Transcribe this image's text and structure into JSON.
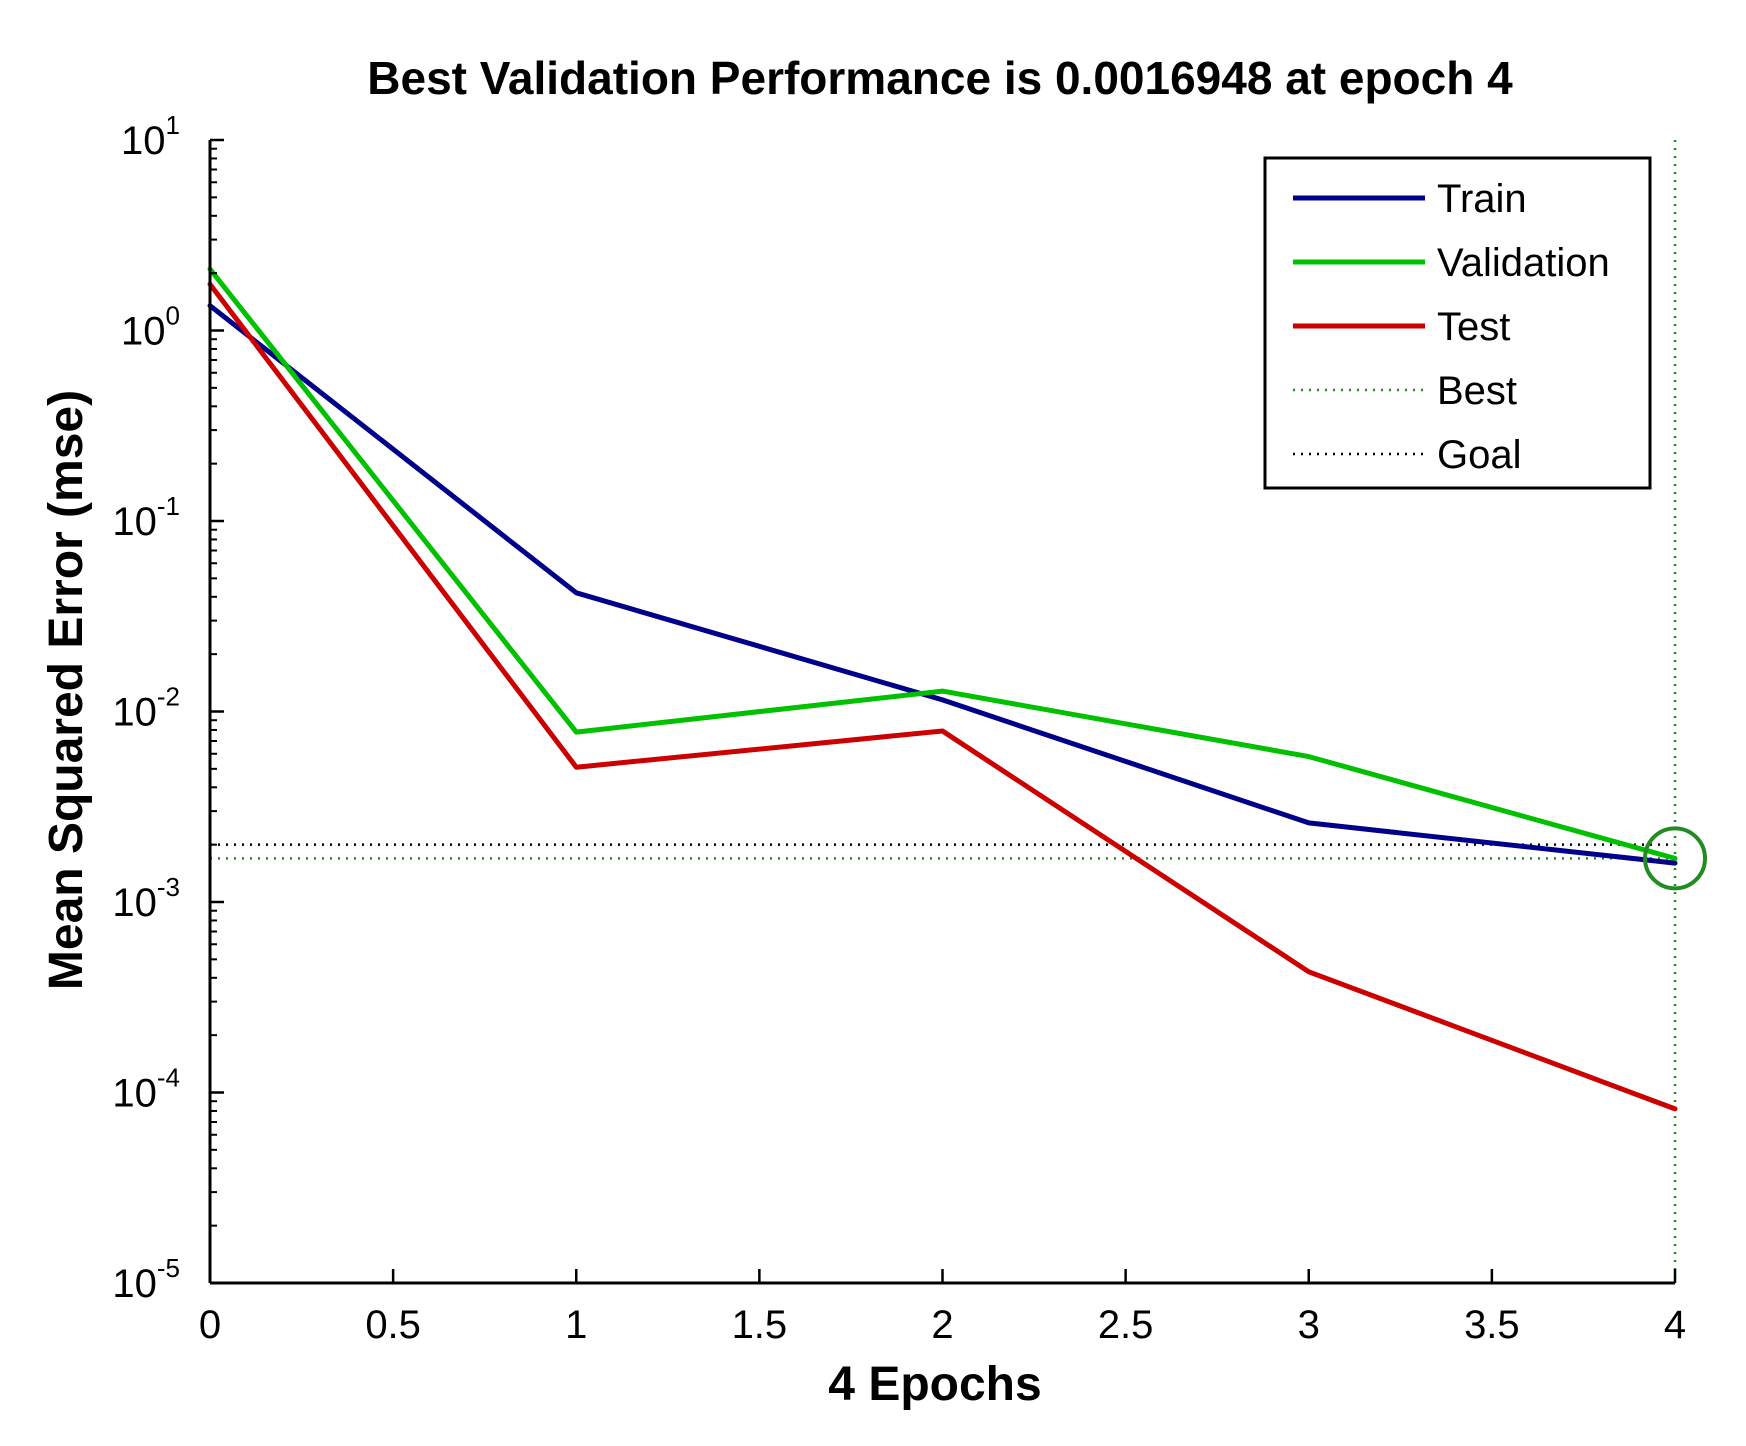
{
  "chart_data": {
    "type": "line",
    "title": "Best Validation Performance is 0.0016948 at epoch 4",
    "xlabel": "4 Epochs",
    "ylabel": "Mean Squared Error  (mse)",
    "xlim": [
      0,
      4
    ],
    "ylim": [
      1e-05,
      10
    ],
    "yscale": "log",
    "x_ticks": [
      "0",
      "0.5",
      "1",
      "1.5",
      "2",
      "2.5",
      "3",
      "3.5",
      "4"
    ],
    "y_ticks": [
      {
        "base": "10",
        "exp": "-5",
        "value": 1e-05
      },
      {
        "base": "10",
        "exp": "-4",
        "value": 0.0001
      },
      {
        "base": "10",
        "exp": "-3",
        "value": 0.001
      },
      {
        "base": "10",
        "exp": "-2",
        "value": 0.01
      },
      {
        "base": "10",
        "exp": "-1",
        "value": 0.1
      },
      {
        "base": "10",
        "exp": "0",
        "value": 1
      },
      {
        "base": "10",
        "exp": "1",
        "value": 10
      }
    ],
    "x": [
      0,
      1,
      2,
      3,
      4
    ],
    "series": [
      {
        "name": "Train",
        "color": "#00008b",
        "values": [
          1.35,
          0.042,
          0.0115,
          0.0026,
          0.0016
        ]
      },
      {
        "name": "Validation",
        "color": "#00c000",
        "values": [
          2.1,
          0.0078,
          0.0128,
          0.0058,
          0.0016948
        ]
      },
      {
        "name": "Test",
        "color": "#cc0000",
        "values": [
          1.75,
          0.0051,
          0.0079,
          0.00043,
          8.2e-05
        ]
      }
    ],
    "best": {
      "name": "Best",
      "epoch": 4,
      "value": 0.0016948,
      "color": "#228b22"
    },
    "goal": {
      "name": "Goal",
      "value": 0.002,
      "color": "#000000"
    },
    "legend_position": "top-right"
  }
}
